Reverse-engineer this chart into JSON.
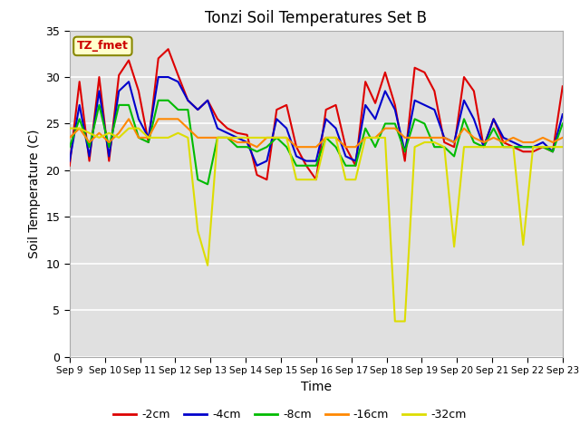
{
  "title": "Tonzi Soil Temperatures Set B",
  "xlabel": "Time",
  "ylabel": "Soil Temperature (C)",
  "ylim": [
    0,
    35
  ],
  "annotation_label": "TZ_fmet",
  "annotation_box_color": "#ffffcc",
  "annotation_text_color": "#cc0000",
  "x_tick_labels": [
    "Sep 9",
    "Sep 10",
    "Sep 11",
    "Sep 12",
    "Sep 13",
    "Sep 14",
    "Sep 15",
    "Sep 16",
    "Sep 17",
    "Sep 18",
    "Sep 19",
    "Sep 20",
    "Sep 21",
    "Sep 22",
    "Sep 23"
  ],
  "series_order": [
    "-2cm",
    "-4cm",
    "-8cm",
    "-16cm",
    "-32cm"
  ],
  "series_colors": {
    "-2cm": "#dd0000",
    "-4cm": "#0000cc",
    "-8cm": "#00bb00",
    "-16cm": "#ff8800",
    "-32cm": "#dddd00"
  },
  "series_lw": 1.5,
  "background_color": "#ffffff",
  "plot_bg_color": "#e0e0e0",
  "grid_color": "#ffffff",
  "data": {
    "-2cm": [
      20.5,
      29.5,
      21.0,
      30.0,
      21.0,
      30.2,
      31.8,
      28.5,
      23.0,
      32.0,
      33.0,
      30.2,
      27.5,
      26.5,
      27.5,
      25.5,
      24.5,
      24.0,
      23.8,
      19.5,
      19.0,
      26.5,
      27.0,
      22.5,
      20.5,
      19.0,
      26.5,
      27.0,
      22.5,
      20.5,
      29.5,
      27.2,
      30.5,
      27.0,
      21.0,
      31.0,
      30.5,
      28.5,
      23.0,
      22.5,
      30.0,
      28.5,
      22.5,
      25.5,
      23.0,
      22.5,
      22.0,
      22.0,
      22.5,
      22.0,
      29.0
    ],
    "-4cm": [
      21.0,
      27.0,
      21.5,
      28.5,
      21.5,
      28.5,
      29.5,
      25.5,
      23.5,
      30.0,
      30.0,
      29.5,
      27.5,
      26.5,
      27.5,
      24.5,
      24.0,
      23.5,
      23.0,
      20.5,
      21.0,
      25.5,
      24.5,
      21.5,
      21.0,
      21.0,
      25.5,
      24.5,
      21.5,
      21.0,
      27.0,
      25.5,
      28.5,
      26.5,
      22.0,
      27.5,
      27.0,
      26.5,
      23.5,
      23.0,
      27.5,
      25.5,
      22.5,
      25.5,
      23.5,
      23.0,
      22.5,
      22.5,
      23.0,
      22.0,
      26.0
    ],
    "-8cm": [
      22.5,
      25.5,
      22.5,
      27.0,
      22.5,
      27.0,
      27.0,
      23.5,
      23.0,
      27.5,
      27.5,
      26.5,
      26.5,
      19.0,
      18.5,
      23.5,
      23.5,
      22.5,
      22.5,
      22.0,
      22.5,
      23.5,
      22.5,
      20.5,
      20.5,
      20.5,
      23.5,
      22.5,
      20.5,
      20.5,
      24.5,
      22.5,
      25.0,
      25.0,
      22.0,
      25.5,
      25.0,
      22.5,
      22.5,
      21.5,
      25.5,
      23.0,
      22.5,
      24.5,
      22.5,
      22.5,
      22.5,
      22.5,
      22.5,
      22.0,
      25.0
    ],
    "-16cm": [
      23.5,
      24.5,
      23.0,
      24.0,
      23.0,
      24.0,
      25.5,
      23.5,
      23.5,
      25.5,
      25.5,
      25.5,
      24.5,
      23.5,
      23.5,
      23.5,
      23.5,
      23.0,
      23.0,
      22.5,
      23.5,
      23.5,
      23.5,
      22.5,
      22.5,
      22.5,
      23.5,
      23.5,
      22.5,
      22.5,
      23.5,
      23.5,
      24.5,
      24.5,
      23.5,
      23.5,
      23.5,
      23.5,
      23.5,
      23.0,
      24.5,
      23.5,
      23.0,
      23.5,
      23.0,
      23.5,
      23.0,
      23.0,
      23.5,
      23.0,
      23.5
    ],
    "-32cm": [
      24.5,
      24.5,
      24.0,
      23.5,
      24.0,
      23.5,
      24.5,
      24.5,
      23.5,
      23.5,
      23.5,
      24.0,
      23.5,
      13.5,
      9.8,
      23.5,
      23.5,
      23.5,
      23.5,
      23.5,
      23.5,
      23.5,
      23.5,
      19.0,
      19.0,
      19.0,
      23.5,
      23.5,
      19.0,
      19.0,
      23.5,
      23.5,
      23.5,
      3.8,
      3.8,
      22.5,
      23.0,
      23.0,
      22.5,
      11.8,
      22.5,
      22.5,
      22.5,
      22.5,
      22.5,
      22.5,
      12.0,
      22.5,
      22.5,
      22.5,
      22.5
    ]
  },
  "legend_dash_colors": [
    "#dd0000",
    "#0000cc",
    "#00bb00",
    "#ff8800",
    "#dddd00"
  ],
  "legend_labels": [
    "-2cm",
    "-4cm",
    "-8cm",
    "-16cm",
    "-32cm"
  ]
}
